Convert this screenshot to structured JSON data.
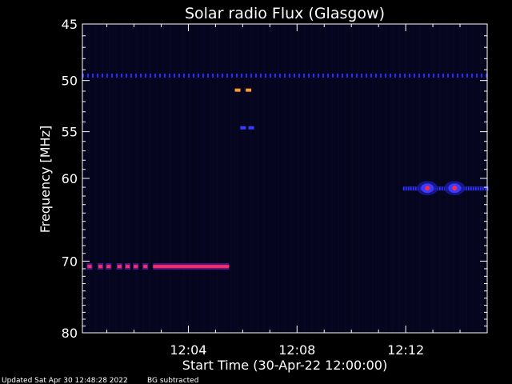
{
  "chart_data": {
    "type": "heatmap",
    "title": "Solar radio Flux (Glasgow)",
    "xlabel": "Start Time (30-Apr-22 12:00:00)",
    "ylabel": "Frequency [MHz]",
    "x_unit": "minutes after 12:00:00",
    "xlim": [
      0.1,
      15.0
    ],
    "ylim": [
      45,
      80
    ],
    "y_scale": "log",
    "x_ticks": [
      {
        "value": 4,
        "label": "12:04"
      },
      {
        "value": 8,
        "label": "12:08"
      },
      {
        "value": 12,
        "label": "12:12"
      }
    ],
    "y_ticks": [
      {
        "value": 45,
        "label": "45"
      },
      {
        "value": 50,
        "label": "50"
      },
      {
        "value": 55,
        "label": "55"
      },
      {
        "value": 60,
        "label": "60"
      },
      {
        "value": 70,
        "label": "70"
      },
      {
        "value": 80,
        "label": "80"
      }
    ],
    "features": [
      {
        "kind": "band",
        "freq_mhz": 49.5,
        "t_start": 0.1,
        "t_end": 15.0,
        "intensity": "low",
        "color": "#2a2aff"
      },
      {
        "kind": "band",
        "freq_mhz": 70.7,
        "t_start": 2.7,
        "t_end": 5.5,
        "intensity": "high",
        "color": "#ff2a60"
      },
      {
        "kind": "dots",
        "freq_mhz": 70.7,
        "times": [
          0.35,
          0.75,
          1.05,
          1.45,
          1.75,
          2.05,
          2.4
        ],
        "intensity": "high",
        "color": "#ff2a60"
      },
      {
        "kind": "blob",
        "freq_mhz": 50.9,
        "times": [
          5.8,
          6.2
        ],
        "intensity": "medium",
        "color": "#ff9a30"
      },
      {
        "kind": "blob",
        "freq_mhz": 54.6,
        "times": [
          6.0,
          6.3
        ],
        "intensity": "low",
        "color": "#3b3bff"
      },
      {
        "kind": "band",
        "freq_mhz": 61.1,
        "t_start": 11.9,
        "t_end": 15.0,
        "intensity": "low",
        "color": "#3030ff"
      },
      {
        "kind": "blob",
        "freq_mhz": 61.1,
        "times": [
          12.8,
          13.8
        ],
        "intensity": "high",
        "color": "#ff2a40"
      }
    ]
  },
  "footer": {
    "updated": "Updated Sat Apr 30 12:48:28 2022",
    "note": "BG subtracted"
  },
  "colors": {
    "background": "#000000",
    "plot_background": "#05051e",
    "axis": "#ffffff"
  }
}
